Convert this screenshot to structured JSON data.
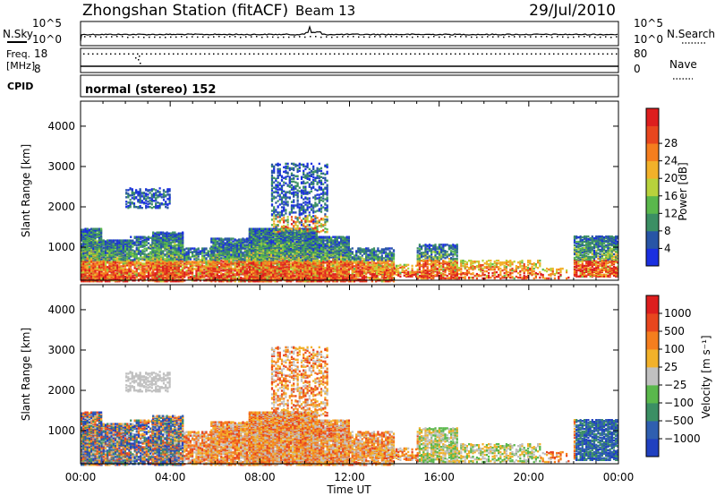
{
  "header": {
    "station": "Zhongshan Station (fitACF)",
    "beam": "Beam 13",
    "date": "29/Jul/2010"
  },
  "noise_panel": {
    "left_label": "N.Sky",
    "left_ticks": [
      "10^5",
      "10^0"
    ],
    "right_label": "N.Search",
    "right_ticks": [
      "10^5",
      "10^0"
    ]
  },
  "freq_panel": {
    "left_label_1": "Freq.",
    "left_label_2": "[MHz]",
    "left_ticks": [
      "18",
      "8"
    ],
    "right_label": "Nave",
    "right_ticks": [
      "80",
      "0"
    ]
  },
  "cpid_panel": {
    "label": "CPID",
    "value": "normal (stereo) 152"
  },
  "colors": {
    "power": [
      "#1a2fe0",
      "#2855a6",
      "#3b8f64",
      "#5ab84c",
      "#b8d23c",
      "#f2b12a",
      "#f57e1e",
      "#e8461e",
      "#dd1e1e"
    ],
    "velocity": [
      "#2040c0",
      "#2f5fb0",
      "#3b8f64",
      "#5ab84c",
      "#c0c0c0",
      "#f2b12a",
      "#f57e1e",
      "#e8461e",
      "#dd1e1e"
    ]
  },
  "chart_data": [
    {
      "type": "heatmap",
      "name": "power",
      "ylabel": "Slant Range [km]",
      "xlabel": "",
      "x_ticks": [
        "00:00",
        "04:00",
        "08:00",
        "12:00",
        "16:00",
        "20:00",
        "00:00"
      ],
      "x_hours": [
        0,
        4,
        8,
        12,
        16,
        20,
        24
      ],
      "y_ticks": [
        1000,
        2000,
        3000,
        4000
      ],
      "ylim": [
        180,
        4620
      ],
      "xlim": [
        0,
        24
      ],
      "colorbar": {
        "label": "Power [dB]",
        "ticks": [
          "4",
          "8",
          "12",
          "16",
          "20",
          "24",
          "28"
        ],
        "range": [
          0,
          30
        ]
      }
    },
    {
      "type": "heatmap",
      "name": "velocity",
      "ylabel": "Slant Range [km]",
      "xlabel": "Time UT",
      "x_ticks": [
        "00:00",
        "04:00",
        "08:00",
        "12:00",
        "16:00",
        "20:00",
        "00:00"
      ],
      "x_hours": [
        0,
        4,
        8,
        12,
        16,
        20,
        24
      ],
      "y_ticks": [
        1000,
        2000,
        3000,
        4000
      ],
      "ylim": [
        180,
        4620
      ],
      "xlim": [
        0,
        24
      ],
      "colorbar": {
        "label": "Velocity [m s⁻¹]",
        "ticks": [
          "1000",
          "500",
          "100",
          "25",
          "−25",
          "−100",
          "−500",
          "−1000"
        ]
      }
    }
  ]
}
